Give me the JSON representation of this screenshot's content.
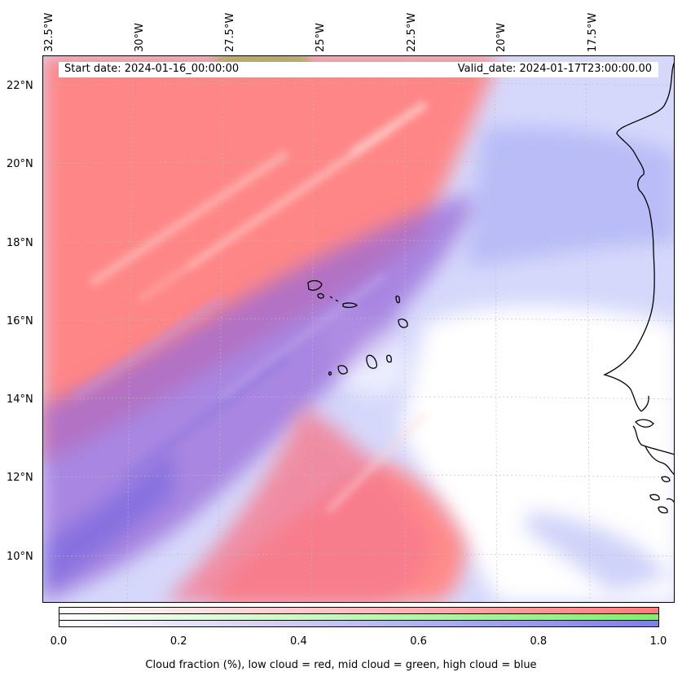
{
  "map": {
    "start_date": "Start date: 2024-01-16_00:00:00",
    "valid_date": "Valid_date: 2024-01-17T23:00:00.00",
    "lon_labels": [
      "32.5°W",
      "30°W",
      "27.5°W",
      "25°W",
      "22.5°W",
      "20°W",
      "17.5°W"
    ],
    "lat_labels": [
      "22°N",
      "20°N",
      "18°N",
      "16°N",
      "14°N",
      "12°N",
      "10°N"
    ],
    "islands_region": "Cape Verde Islands",
    "coastline_region": "West Africa coast"
  },
  "colorbar": {
    "ticks": [
      "0.0",
      "0.2",
      "0.4",
      "0.6",
      "0.8",
      "1.0"
    ],
    "caption": "Cloud fraction (%), low cloud = red, mid cloud = green, high cloud = blue",
    "colors": {
      "low": "#ff7b7b",
      "mid": "#7fef6f",
      "high": "#7f7fe6"
    }
  }
}
